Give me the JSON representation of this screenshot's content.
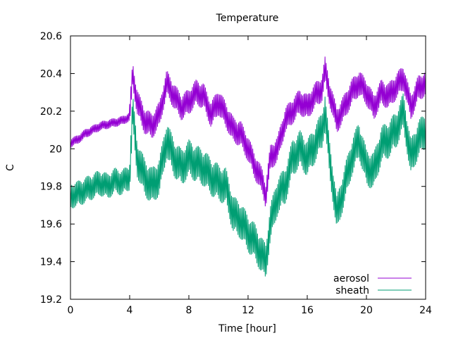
{
  "chart_data": {
    "type": "line",
    "title": "Temperature",
    "xlabel": "Time [hour]",
    "ylabel": "C",
    "xlim": [
      0,
      24
    ],
    "ylim": [
      19.2,
      20.6
    ],
    "xticks": [
      0,
      4,
      8,
      12,
      16,
      20,
      24
    ],
    "xtick_labels": [
      "0",
      "4",
      "8",
      "12",
      "16",
      "20",
      "24"
    ],
    "yticks": [
      19.2,
      19.4,
      19.6,
      19.8,
      20.0,
      20.2,
      20.4,
      20.6
    ],
    "ytick_labels": [
      "19.2",
      "19.4",
      "19.6",
      "19.8",
      "20",
      "20.2",
      "20.4",
      "20.6"
    ],
    "grid": false,
    "legend_position": "bottom-right",
    "series": [
      {
        "name": "aerosol",
        "color": "#9400d3",
        "x": [
          0,
          0.5,
          1,
          1.5,
          2,
          2.5,
          3,
          3.5,
          4,
          4.2,
          4.5,
          5,
          5.5,
          6,
          6.5,
          7,
          7.5,
          8,
          8.5,
          9,
          9.5,
          10,
          10.5,
          11,
          11.5,
          12,
          12.5,
          13,
          13.2,
          13.5,
          14,
          14.5,
          15,
          15.5,
          16,
          16.5,
          17,
          17.2,
          17.5,
          18,
          18.5,
          19,
          19.5,
          20,
          20.5,
          21,
          21.5,
          22,
          22.5,
          23,
          23.5,
          24
        ],
        "y": [
          20.03,
          20.05,
          20.08,
          20.1,
          20.12,
          20.13,
          20.14,
          20.15,
          20.17,
          20.4,
          20.25,
          20.15,
          20.12,
          20.18,
          20.35,
          20.28,
          20.22,
          20.25,
          20.3,
          20.28,
          20.18,
          20.25,
          20.18,
          20.1,
          20.08,
          20.0,
          19.9,
          19.82,
          19.75,
          19.95,
          20.0,
          20.15,
          20.2,
          20.25,
          20.22,
          20.28,
          20.32,
          20.42,
          20.3,
          20.15,
          20.22,
          20.3,
          20.35,
          20.3,
          20.22,
          20.3,
          20.28,
          20.33,
          20.38,
          20.22,
          20.32,
          20.35
        ]
      },
      {
        "name": "sheath",
        "color": "#009e73",
        "x": [
          0,
          0.5,
          1,
          1.5,
          2,
          2.5,
          3,
          3.5,
          4,
          4.2,
          4.5,
          5,
          5.5,
          6,
          6.5,
          7,
          7.5,
          8,
          8.5,
          9,
          9.5,
          10,
          10.5,
          11,
          11.5,
          12,
          12.5,
          13,
          13.2,
          13.5,
          14,
          14.5,
          15,
          15.5,
          16,
          16.5,
          17,
          17.2,
          17.5,
          18,
          18.5,
          19,
          19.5,
          20,
          20.5,
          21,
          21.5,
          22,
          22.5,
          23,
          23.5,
          24
        ],
        "y": [
          19.75,
          19.76,
          19.78,
          19.8,
          19.82,
          19.8,
          19.83,
          19.82,
          19.85,
          20.2,
          19.95,
          19.85,
          19.8,
          19.85,
          20.05,
          19.95,
          19.9,
          19.95,
          19.92,
          19.9,
          19.85,
          19.82,
          19.8,
          19.65,
          19.62,
          19.55,
          19.5,
          19.42,
          19.4,
          19.6,
          19.75,
          19.8,
          19.95,
          20.0,
          19.95,
          20.02,
          20.1,
          20.2,
          19.95,
          19.65,
          19.8,
          19.95,
          20.05,
          19.9,
          19.88,
          20.02,
          20.05,
          20.1,
          20.2,
          19.95,
          20.05,
          20.1
        ]
      }
    ]
  }
}
